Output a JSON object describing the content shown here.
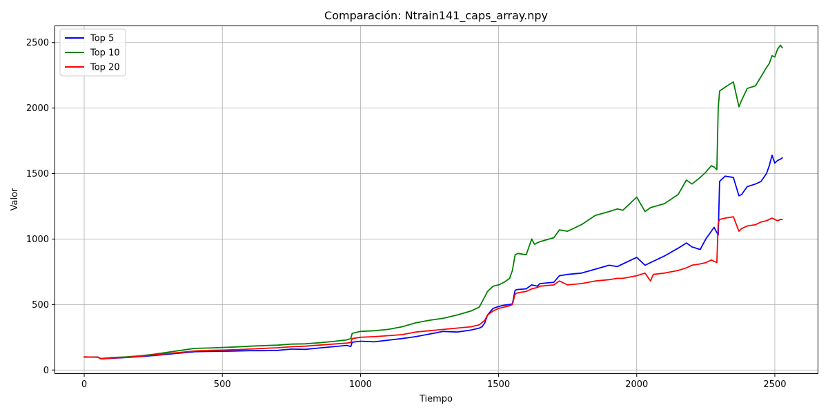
{
  "chart_data": {
    "type": "line",
    "title": "Comparación: Ntrain141_caps_array.npy",
    "xlabel": "Tiempo",
    "ylabel": "Valor",
    "xlim": [
      -105,
      2655
    ],
    "ylim": [
      -25,
      2625
    ],
    "xticks": [
      0,
      500,
      1000,
      1500,
      2000,
      2500
    ],
    "yticks": [
      0,
      500,
      1000,
      1500,
      2000,
      2500
    ],
    "grid": true,
    "legend_position": "top-left",
    "series": [
      {
        "name": "Top 5",
        "color": "#0000ff",
        "x": [
          0,
          50,
          60,
          100,
          150,
          200,
          250,
          300,
          350,
          400,
          450,
          500,
          550,
          600,
          650,
          700,
          750,
          800,
          850,
          900,
          950,
          965,
          970,
          1000,
          1050,
          1100,
          1150,
          1200,
          1250,
          1300,
          1350,
          1400,
          1430,
          1440,
          1450,
          1460,
          1480,
          1500,
          1520,
          1540,
          1550,
          1560,
          1570,
          1600,
          1620,
          1640,
          1650,
          1700,
          1720,
          1750,
          1800,
          1850,
          1900,
          1930,
          1950,
          2000,
          2030,
          2050,
          2100,
          2150,
          2180,
          2200,
          2230,
          2250,
          2270,
          2280,
          2290,
          2295,
          2300,
          2320,
          2350,
          2370,
          2380,
          2400,
          2430,
          2450,
          2470,
          2480,
          2490,
          2500,
          2510,
          2520,
          2527
        ],
        "values": [
          100,
          98,
          85,
          90,
          95,
          102,
          110,
          120,
          130,
          140,
          142,
          143,
          145,
          148,
          148,
          150,
          160,
          158,
          168,
          178,
          188,
          180,
          212,
          220,
          215,
          228,
          240,
          255,
          275,
          295,
          290,
          305,
          320,
          330,
          360,
          420,
          470,
          485,
          495,
          500,
          505,
          610,
          615,
          620,
          650,
          640,
          660,
          670,
          720,
          730,
          740,
          770,
          800,
          790,
          810,
          860,
          800,
          820,
          870,
          930,
          970,
          940,
          920,
          1000,
          1060,
          1090,
          1050,
          1030,
          1440,
          1480,
          1470,
          1330,
          1340,
          1400,
          1420,
          1440,
          1500,
          1560,
          1640,
          1580,
          1600,
          1610,
          1620
        ]
      },
      {
        "name": "Top 10",
        "color": "#008000",
        "x": [
          0,
          50,
          60,
          100,
          150,
          200,
          250,
          300,
          350,
          400,
          450,
          500,
          550,
          600,
          650,
          700,
          750,
          800,
          850,
          900,
          950,
          965,
          970,
          1000,
          1050,
          1100,
          1150,
          1200,
          1250,
          1300,
          1350,
          1400,
          1430,
          1450,
          1460,
          1480,
          1500,
          1520,
          1540,
          1550,
          1560,
          1570,
          1600,
          1620,
          1630,
          1650,
          1700,
          1720,
          1750,
          1800,
          1850,
          1900,
          1930,
          1950,
          1990,
          2000,
          2030,
          2050,
          2100,
          2150,
          2180,
          2200,
          2230,
          2250,
          2270,
          2280,
          2290,
          2295,
          2300,
          2320,
          2350,
          2370,
          2380,
          2400,
          2430,
          2450,
          2470,
          2480,
          2490,
          2500,
          2510,
          2520,
          2527
        ],
        "values": [
          100,
          98,
          88,
          95,
          100,
          108,
          120,
          135,
          150,
          165,
          168,
          172,
          176,
          182,
          186,
          190,
          198,
          200,
          208,
          218,
          230,
          240,
          280,
          295,
          300,
          310,
          330,
          360,
          380,
          395,
          420,
          450,
          480,
          560,
          600,
          640,
          650,
          670,
          700,
          760,
          880,
          890,
          880,
          1000,
          960,
          980,
          1010,
          1070,
          1060,
          1110,
          1180,
          1210,
          1230,
          1220,
          1300,
          1320,
          1210,
          1240,
          1270,
          1340,
          1450,
          1420,
          1470,
          1510,
          1560,
          1550,
          1530,
          2000,
          2130,
          2160,
          2200,
          2010,
          2060,
          2150,
          2170,
          2240,
          2310,
          2340,
          2400,
          2390,
          2450,
          2480,
          2460
        ]
      },
      {
        "name": "Top 20",
        "color": "#ff0000",
        "x": [
          0,
          50,
          60,
          100,
          150,
          200,
          250,
          300,
          350,
          400,
          450,
          500,
          550,
          600,
          650,
          700,
          750,
          800,
          850,
          900,
          950,
          965,
          970,
          1000,
          1050,
          1100,
          1150,
          1200,
          1250,
          1300,
          1350,
          1400,
          1430,
          1450,
          1460,
          1480,
          1500,
          1520,
          1540,
          1550,
          1560,
          1570,
          1600,
          1620,
          1640,
          1650,
          1700,
          1720,
          1750,
          1800,
          1850,
          1900,
          1930,
          1950,
          2000,
          2030,
          2050,
          2060,
          2100,
          2150,
          2180,
          2200,
          2230,
          2250,
          2270,
          2280,
          2290,
          2295,
          2300,
          2320,
          2350,
          2370,
          2380,
          2400,
          2430,
          2450,
          2470,
          2480,
          2490,
          2500,
          2510,
          2520,
          2527
        ],
        "values": [
          100,
          98,
          86,
          92,
          96,
          104,
          115,
          125,
          135,
          145,
          150,
          152,
          155,
          160,
          165,
          170,
          178,
          182,
          190,
          198,
          205,
          210,
          240,
          250,
          255,
          262,
          270,
          290,
          300,
          310,
          320,
          330,
          345,
          380,
          420,
          450,
          470,
          480,
          490,
          500,
          580,
          590,
          600,
          620,
          630,
          640,
          650,
          680,
          650,
          660,
          680,
          690,
          700,
          700,
          720,
          740,
          680,
          730,
          740,
          760,
          780,
          800,
          810,
          820,
          840,
          830,
          820,
          1120,
          1150,
          1160,
          1170,
          1060,
          1080,
          1100,
          1110,
          1130,
          1140,
          1150,
          1160,
          1150,
          1140,
          1150,
          1150
        ]
      }
    ]
  }
}
